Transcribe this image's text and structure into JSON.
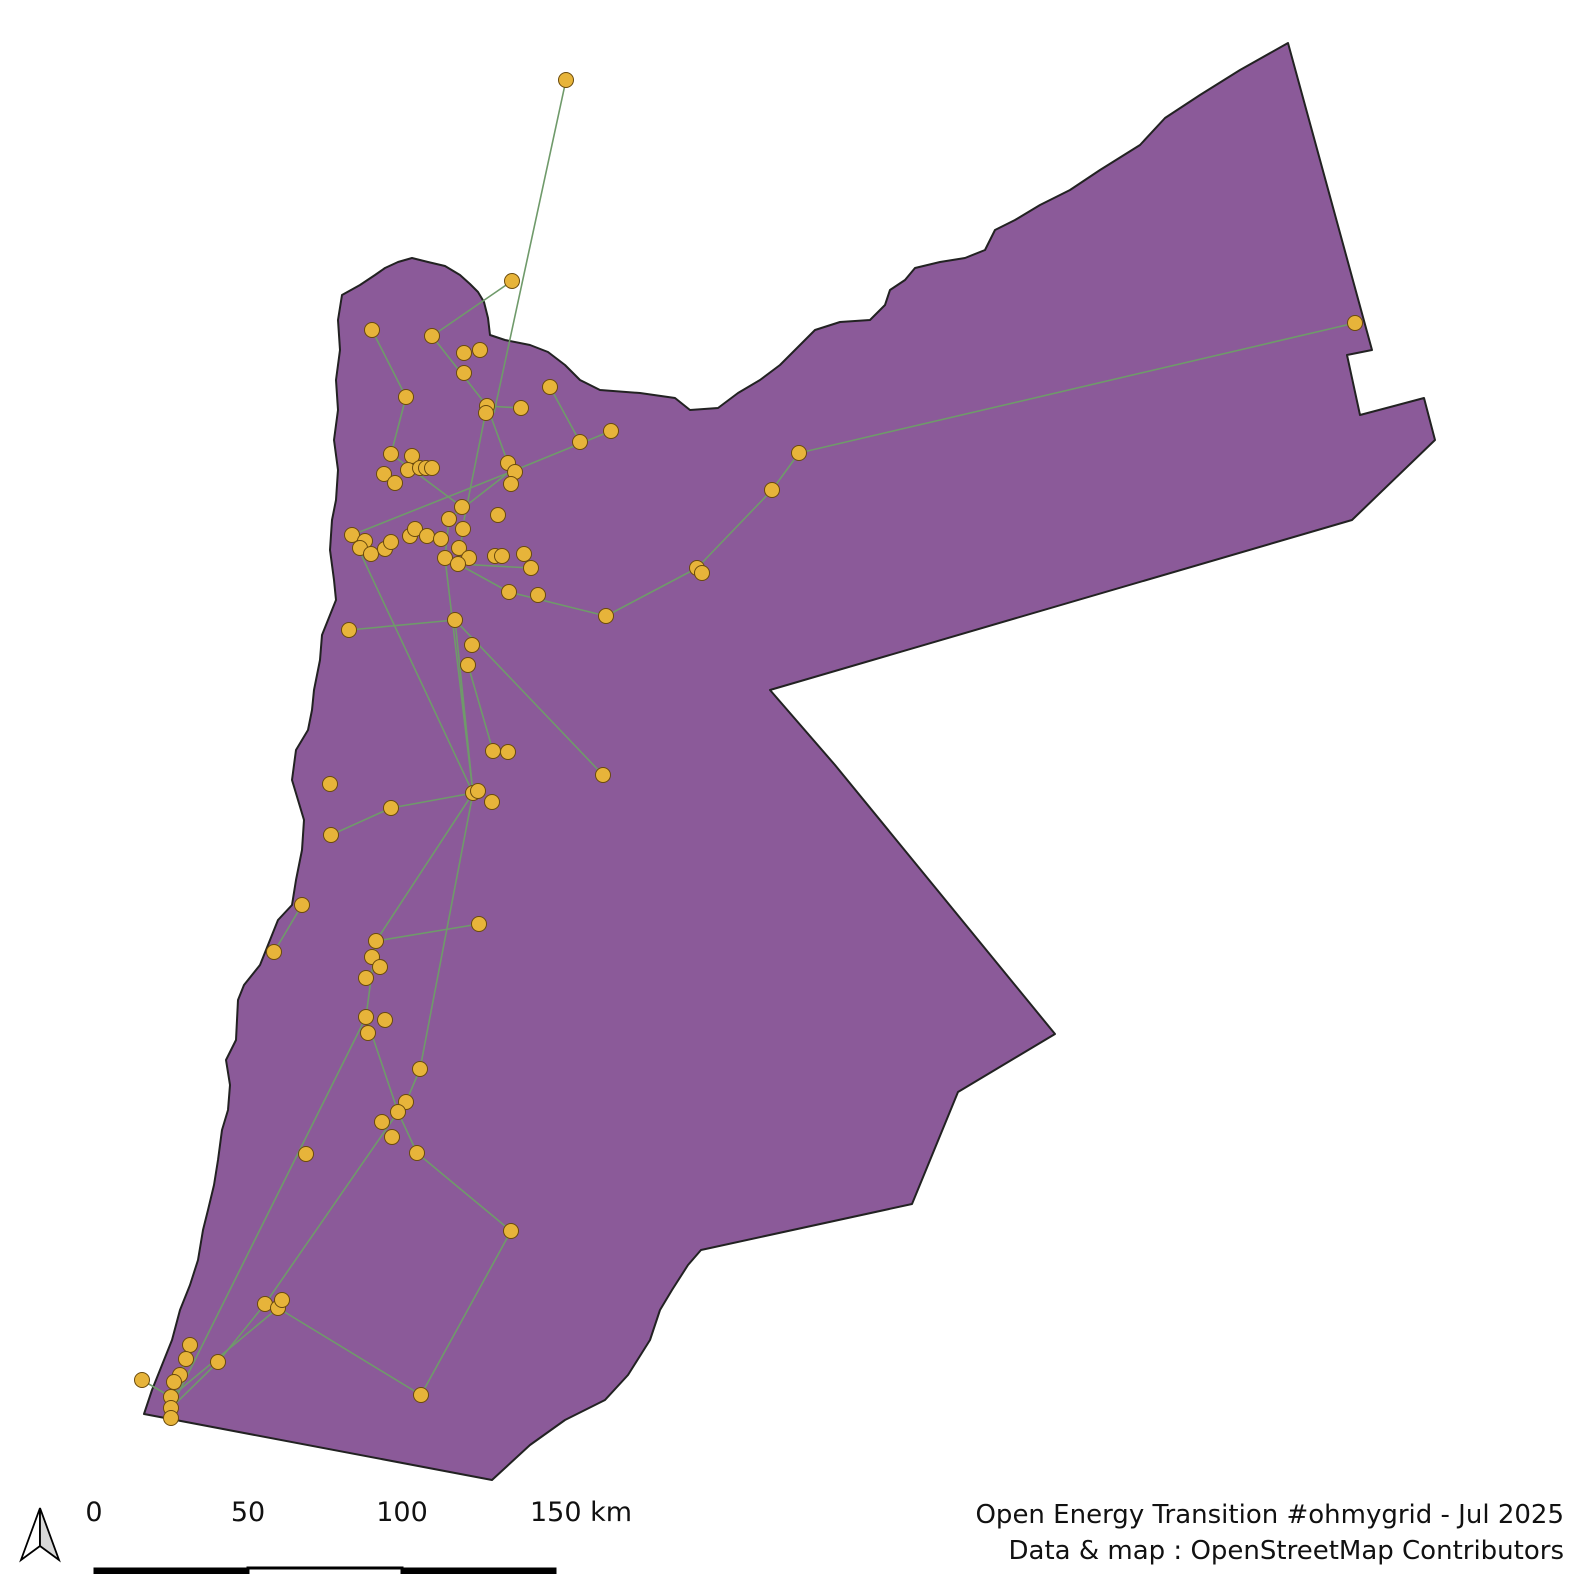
{
  "colors": {
    "country_fill": "#8b5a99",
    "line": "#6f9a6a",
    "substation": "#e7b43a",
    "scale_bar": "#000000"
  },
  "map": {
    "subject": "Jordan",
    "icons": [
      "north-arrow-icon"
    ]
  },
  "scale_bar": {
    "labels": [
      "0",
      "50",
      "100",
      "150 km"
    ]
  },
  "credits": {
    "line1": "Open Energy Transition #ohmygrid - Jul 2025",
    "line2": "Data & map : OpenStreetMap Contributors"
  }
}
